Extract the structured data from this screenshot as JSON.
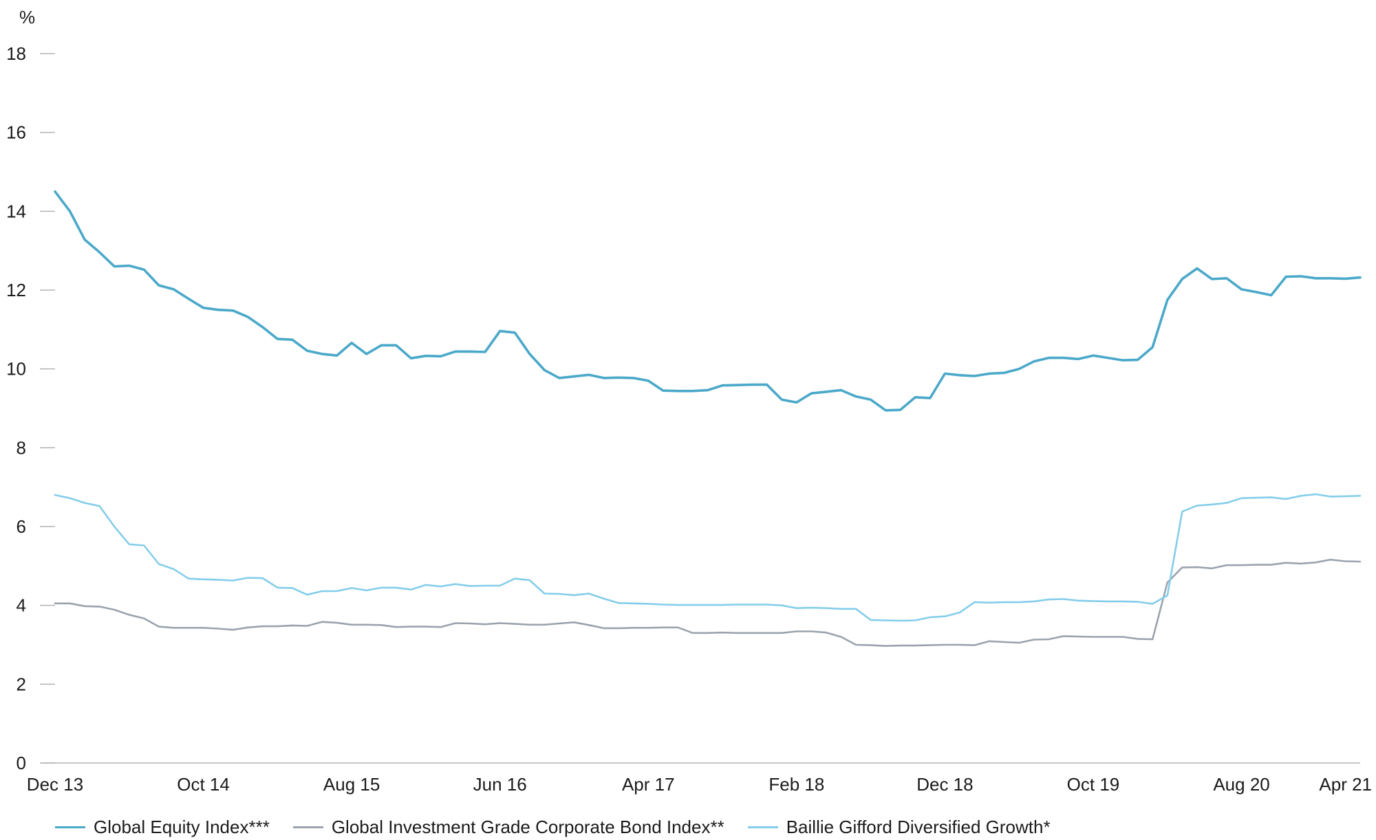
{
  "chart_data": {
    "type": "line",
    "title": "",
    "xlabel": "",
    "ylabel": "%",
    "ylim": [
      0,
      18
    ],
    "yticks": [
      "0",
      "2",
      "4",
      "6",
      "8",
      "10",
      "12",
      "14",
      "16",
      "18"
    ],
    "xticks": [
      "Dec 13",
      "Oct 14",
      "Aug 15",
      "Jun 16",
      "Apr 17",
      "Feb 18",
      "Dec 18",
      "Oct 19",
      "Aug 20",
      "Apr 21"
    ],
    "x_start": "Dec 13",
    "x_end": "Apr 21",
    "months": 89,
    "series": [
      {
        "name": "Global Equity Index***",
        "color": "#4aa8c9",
        "values": [
          14.5,
          14.0,
          13.28,
          12.96,
          12.6,
          12.62,
          12.52,
          12.12,
          12.02,
          11.78,
          11.55,
          11.5,
          11.48,
          11.32,
          11.06,
          10.76,
          10.74,
          10.46,
          10.38,
          10.34,
          10.66,
          10.38,
          10.6,
          10.6,
          10.27,
          10.33,
          10.32,
          10.44,
          10.44,
          10.43,
          10.96,
          10.92,
          10.38,
          9.97,
          9.77,
          9.81,
          9.85,
          9.77,
          9.78,
          9.77,
          9.7,
          9.45,
          9.44,
          9.44,
          9.46,
          9.58,
          9.59,
          9.6,
          9.6,
          9.22,
          9.15,
          9.38,
          9.42,
          9.46,
          9.3,
          9.22,
          8.95,
          8.96,
          9.28,
          9.26,
          9.88,
          9.84,
          9.82,
          9.88,
          9.9,
          10.0,
          10.19,
          10.28,
          10.28,
          10.25,
          10.34,
          10.28,
          10.22,
          10.23,
          10.55,
          11.75,
          12.28,
          12.55,
          12.28,
          12.3,
          12.02,
          11.95,
          11.87,
          12.34,
          12.35,
          12.3,
          12.3,
          12.29,
          12.32
        ]
      },
      {
        "name": "Global Investment Grade Corporate Bond Index**",
        "color": "#9aa3ad",
        "values": [
          4.05,
          4.05,
          3.98,
          3.97,
          3.89,
          3.76,
          3.67,
          3.46,
          3.43,
          3.43,
          3.43,
          3.41,
          3.38,
          3.44,
          3.47,
          3.47,
          3.49,
          3.48,
          3.58,
          3.56,
          3.51,
          3.51,
          3.5,
          3.45,
          3.46,
          3.46,
          3.45,
          3.55,
          3.54,
          3.52,
          3.55,
          3.53,
          3.51,
          3.51,
          3.54,
          3.57,
          3.5,
          3.42,
          3.42,
          3.43,
          3.43,
          3.44,
          3.44,
          3.3,
          3.3,
          3.31,
          3.3,
          3.3,
          3.3,
          3.3,
          3.34,
          3.34,
          3.31,
          3.2,
          3.0,
          2.99,
          2.97,
          2.98,
          2.98,
          2.99,
          3.0,
          3.0,
          2.99,
          3.09,
          3.07,
          3.05,
          3.13,
          3.14,
          3.22,
          3.21,
          3.2,
          3.2,
          3.2,
          3.15,
          3.14,
          4.58,
          4.96,
          4.97,
          4.94,
          5.02,
          5.02,
          5.03,
          5.03,
          5.08,
          5.06,
          5.09,
          5.16,
          5.12,
          5.11
        ]
      },
      {
        "name": "Baillie Gifford Diversified Growth*",
        "color": "#84cdea",
        "values": [
          6.8,
          6.72,
          6.6,
          6.52,
          6.0,
          5.55,
          5.52,
          5.05,
          4.92,
          4.68,
          4.66,
          4.65,
          4.63,
          4.7,
          4.69,
          4.45,
          4.44,
          4.27,
          4.36,
          4.36,
          4.44,
          4.38,
          4.45,
          4.45,
          4.4,
          4.52,
          4.48,
          4.54,
          4.49,
          4.5,
          4.5,
          4.68,
          4.64,
          4.3,
          4.29,
          4.26,
          4.3,
          4.17,
          4.06,
          4.05,
          4.04,
          4.02,
          4.01,
          4.01,
          4.01,
          4.01,
          4.02,
          4.02,
          4.02,
          4.0,
          3.93,
          3.94,
          3.93,
          3.91,
          3.91,
          3.63,
          3.62,
          3.61,
          3.62,
          3.7,
          3.72,
          3.82,
          4.08,
          4.07,
          4.08,
          4.08,
          4.1,
          4.15,
          4.16,
          4.12,
          4.11,
          4.1,
          4.1,
          4.09,
          4.04,
          4.25,
          6.38,
          6.53,
          6.56,
          6.6,
          6.72,
          6.73,
          6.74,
          6.7,
          6.78,
          6.82,
          6.76,
          6.77,
          6.78
        ]
      }
    ],
    "grid": false,
    "legend_position": "bottom"
  }
}
